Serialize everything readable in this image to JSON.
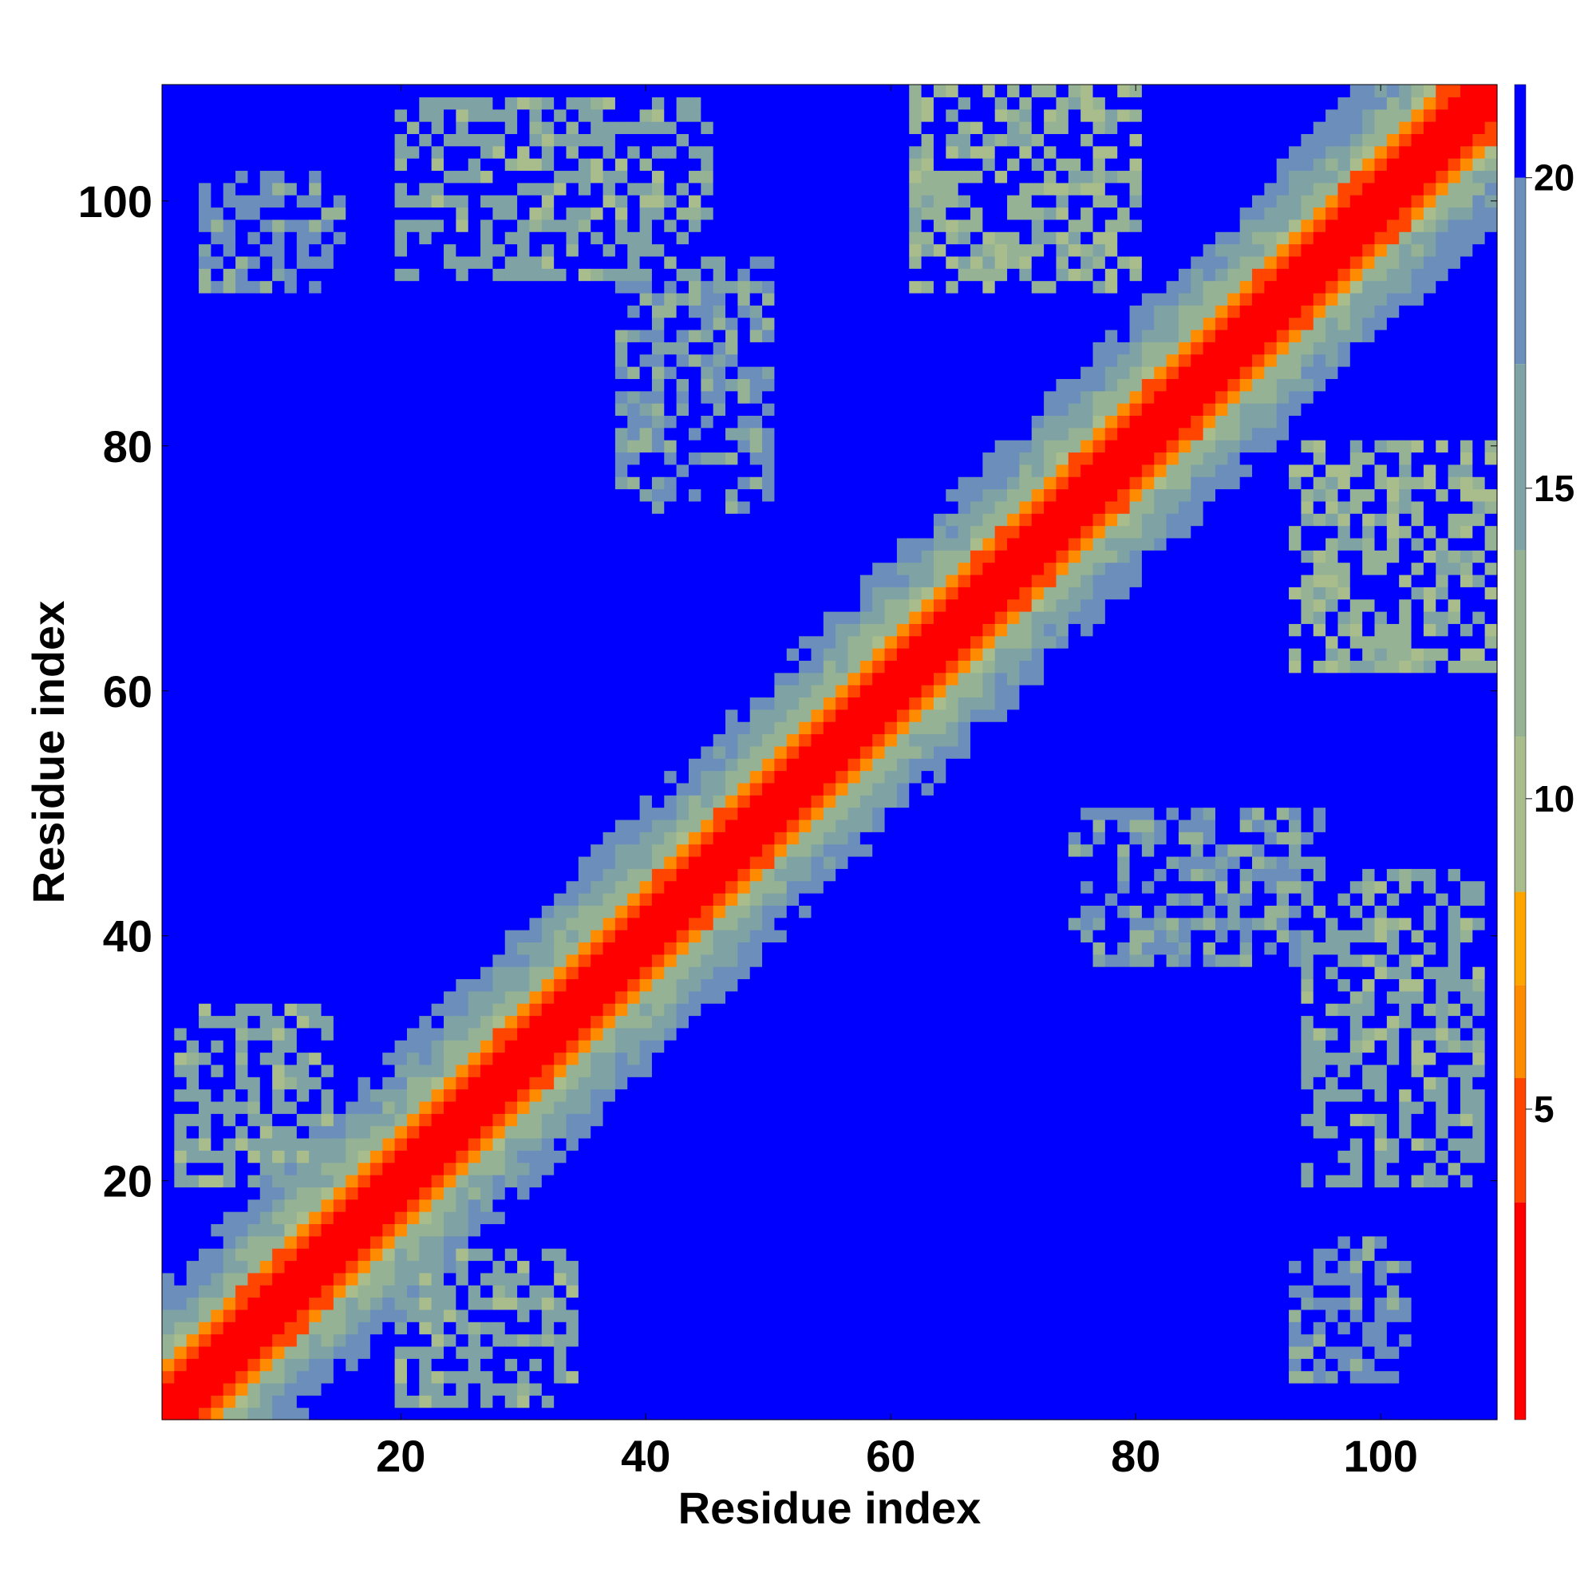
{
  "chart_data": {
    "type": "heatmap",
    "title": "",
    "xlabel": "Residue index",
    "ylabel": "Residue index",
    "n_residues": 109,
    "xlim": [
      1,
      109
    ],
    "ylim": [
      1,
      109
    ],
    "xticks": [
      20,
      40,
      60,
      80,
      100
    ],
    "yticks": [
      20,
      40,
      60,
      80,
      100
    ],
    "colorbar": {
      "ticks": [
        5,
        10,
        15,
        20
      ],
      "range": [
        0,
        21.5
      ],
      "saturation_above": 20,
      "colors": [
        {
          "max": 3.5,
          "color": "#ff0000"
        },
        {
          "max": 5.5,
          "color": "#ff4500"
        },
        {
          "max": 7.0,
          "color": "#ff8c00"
        },
        {
          "max": 8.5,
          "color": "#ffa500"
        },
        {
          "max": 11.0,
          "color": "#a9bd8c"
        },
        {
          "max": 14.0,
          "color": "#96b294"
        },
        {
          "max": 17.0,
          "color": "#7fa3a5"
        },
        {
          "max": 20.0,
          "color": "#6b8fba"
        },
        {
          "max": 999,
          "color": "#0000ff"
        }
      ]
    },
    "description_of_values": "Distance map between residues (symmetric). Diagonal bands near zero distance; contact clusters of 7-20 between distant segments.",
    "contact_regions": [
      {
        "i": [
          2,
          14
        ],
        "j": [
          20,
          34
        ],
        "level": 15
      },
      {
        "i": [
          20,
          34
        ],
        "j": [
          100,
          108
        ],
        "level": 15
      },
      {
        "i": [
          40,
          48
        ],
        "j": [
          75,
          90
        ],
        "level": 17
      },
      {
        "i": [
          62,
          80
        ],
        "j": [
          93,
          109
        ],
        "level": 13
      },
      {
        "i": [
          76,
          95
        ],
        "j": [
          38,
          50
        ],
        "level": 17
      },
      {
        "i": [
          94,
          108
        ],
        "j": [
          20,
          45
        ],
        "level": 15
      },
      {
        "i": [
          93,
          102
        ],
        "j": [
          4,
          15
        ],
        "level": 18
      }
    ]
  }
}
